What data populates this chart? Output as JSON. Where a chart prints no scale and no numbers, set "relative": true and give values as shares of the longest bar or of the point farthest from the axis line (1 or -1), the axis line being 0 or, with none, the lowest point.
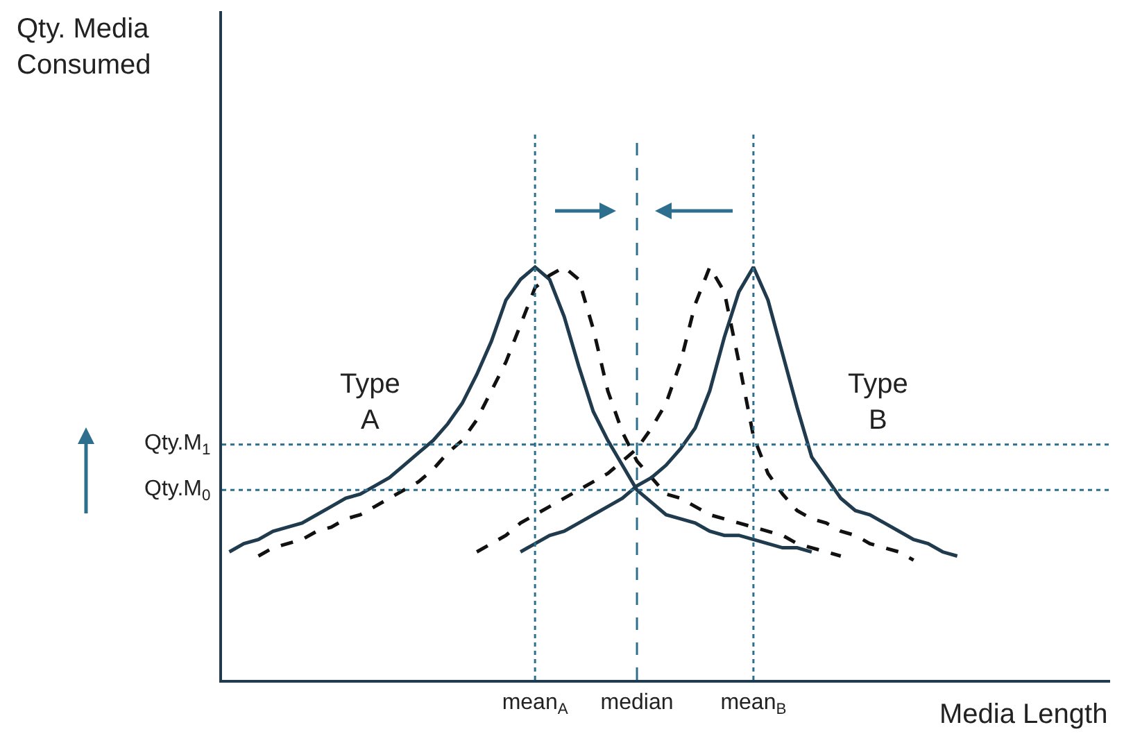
{
  "chart_data": {
    "type": "line",
    "relative": true,
    "xlabel": "Media Length",
    "tick_labels": "x",
    "categories": [
      null,
      null,
      null,
      null,
      null,
      null,
      null,
      null,
      null,
      null,
      null,
      null,
      null,
      null,
      null,
      null,
      null,
      null,
      null,
      null,
      null,
      "mean$_{A}$",
      null,
      null,
      null,
      null,
      null,
      null,
      "median",
      null,
      null,
      null,
      null,
      null,
      null,
      null,
      "mean$_{B}$",
      null,
      null,
      null,
      null,
      null,
      null,
      null,
      null,
      null,
      null,
      null,
      null,
      null,
      null,
      null,
      null,
      null,
      null,
      null,
      null,
      null,
      null,
      null,
      null
    ],
    "series": [
      {
        "color": "#1f3b4d",
        "line_style": "solid",
        "values": [
          0.31,
          0.33,
          0.34,
          0.36,
          0.37,
          0.38,
          0.4,
          0.42,
          0.44,
          0.45,
          0.47,
          0.49,
          0.52,
          0.55,
          0.58,
          0.62,
          0.67,
          0.74,
          0.82,
          0.92,
          0.97,
          1,
          0.97,
          0.88,
          0.76,
          0.65,
          0.58,
          0.52,
          0.46,
          0.43,
          0.4,
          0.39,
          0.38,
          0.36,
          0.35,
          0.35,
          0.34,
          0.33,
          0.32,
          0.32,
          0.31,
          null,
          null,
          null,
          null,
          null,
          null,
          null,
          null,
          null,
          null,
          null,
          null,
          null,
          null,
          null,
          null,
          null,
          null,
          null,
          null
        ]
      },
      {
        "color": "#111111",
        "line_style": "dashed",
        "values": [
          null,
          null,
          0.3,
          0.32,
          0.33,
          0.34,
          0.36,
          0.37,
          0.39,
          0.4,
          0.42,
          0.44,
          0.46,
          0.48,
          0.51,
          0.55,
          0.58,
          0.63,
          0.7,
          0.77,
          0.86,
          0.95,
          0.98,
          1,
          0.97,
          0.85,
          0.7,
          0.6,
          0.53,
          0.49,
          0.45,
          0.44,
          0.42,
          0.4,
          0.39,
          0.38,
          0.37,
          0.36,
          0.35,
          0.33,
          0.32,
          0.31,
          0.3,
          null,
          null,
          null,
          null,
          null,
          null,
          null,
          null,
          null,
          null,
          null,
          null,
          null,
          null,
          null,
          null,
          null,
          null
        ]
      },
      {
        "color": "#1f3b4d",
        "line_style": "solid",
        "values": [
          null,
          null,
          null,
          null,
          null,
          null,
          null,
          null,
          null,
          null,
          null,
          null,
          null,
          null,
          null,
          null,
          null,
          null,
          null,
          null,
          0.31,
          0.33,
          0.35,
          0.36,
          0.38,
          0.4,
          0.42,
          0.44,
          0.47,
          0.49,
          0.52,
          0.56,
          0.61,
          0.7,
          0.83,
          0.94,
          1,
          0.92,
          0.79,
          0.66,
          0.54,
          0.49,
          0.44,
          0.41,
          0.4,
          0.38,
          0.36,
          0.34,
          0.33,
          0.31,
          0.3,
          null,
          null,
          null,
          null,
          null,
          null,
          null,
          null,
          null,
          null
        ]
      },
      {
        "color": "#111111",
        "line_style": "dashed",
        "values": [
          null,
          null,
          null,
          null,
          null,
          null,
          null,
          null,
          null,
          null,
          null,
          null,
          null,
          null,
          null,
          null,
          null,
          0.31,
          0.33,
          0.35,
          0.38,
          0.4,
          0.42,
          0.44,
          0.46,
          0.48,
          0.5,
          0.53,
          0.56,
          0.61,
          0.67,
          0.77,
          0.91,
          1,
          0.94,
          0.77,
          0.59,
          0.5,
          0.45,
          0.41,
          0.39,
          0.38,
          0.36,
          0.35,
          0.33,
          0.32,
          0.31,
          0.29,
          null,
          null,
          null,
          null,
          null,
          null,
          null,
          null,
          null,
          null,
          null,
          null,
          null
        ]
      }
    ],
    "ref_lines": [
      {
        "axis": "x",
        "value": "mean$_{A}$",
        "color": "#2e6f8e",
        "line_style": "dotted"
      },
      {
        "axis": "x",
        "value": "median",
        "color": "#2e6f8e",
        "line_style": "dashed"
      },
      {
        "axis": "x",
        "value": "mean$_{B}$",
        "color": "#2e6f8e",
        "line_style": "dotted"
      },
      {
        "axis": "y",
        "value": 0.57,
        "label": "Qty.M$_{1}$",
        "color": "#2e6f8e",
        "line_style": "dotted"
      },
      {
        "axis": "y",
        "value": 0.46,
        "label": "Qty.M$_{0}$",
        "color": "#2e6f8e",
        "line_style": "dotted"
      }
    ],
    "annotations": [
      "Qty. Media Consumed",
      "Type A",
      "Type B"
    ]
  }
}
